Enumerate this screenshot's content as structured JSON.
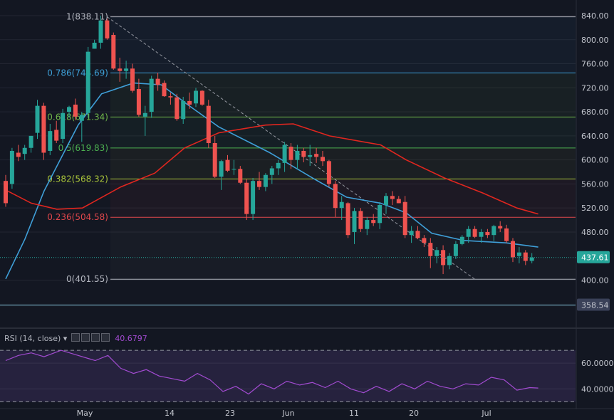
{
  "chart_data": [
    {
      "type": "candlestick",
      "title": "",
      "xlabel": "",
      "ylabel": "",
      "ylim": [
        335,
        845
      ],
      "price_ticks": [
        "840.00",
        "800.00",
        "760.00",
        "720.00",
        "680.00",
        "640.00",
        "600.00",
        "560.00",
        "520.00",
        "480.00",
        "400.00"
      ],
      "date_labels": [
        "May",
        "14",
        "23",
        "Jun",
        "11",
        "20",
        "Jul"
      ],
      "last_price": "437.61",
      "level_marker": "358.54",
      "grid": true,
      "fibonacci": [
        {
          "label": "1(838.11)",
          "value": 838.11,
          "color": "#b2b5be"
        },
        {
          "label": "0.786(744.69)",
          "value": 744.69,
          "color": "#3ea0d8"
        },
        {
          "label": "0.618(671.34)",
          "value": 671.34,
          "color": "#6fb54a"
        },
        {
          "label": "0.5(619.83)",
          "value": 619.83,
          "color": "#4caf50"
        },
        {
          "label": "0.382(568.32)",
          "value": 568.32,
          "color": "#a9c43a"
        },
        {
          "label": "0.236(504.58)",
          "value": 504.58,
          "color": "#e0474c"
        },
        {
          "label": "0(401.55)",
          "value": 401.55,
          "color": "#b2b5be"
        }
      ],
      "candles": [
        [
          565,
          575,
          522,
          528
        ],
        [
          560,
          620,
          552,
          615
        ],
        [
          612,
          625,
          598,
          605
        ],
        [
          610,
          625,
          600,
          620
        ],
        [
          620,
          640,
          612,
          640
        ],
        [
          645,
          700,
          635,
          690
        ],
        [
          690,
          695,
          600,
          612
        ],
        [
          615,
          660,
          608,
          648
        ],
        [
          650,
          665,
          628,
          632
        ],
        [
          635,
          685,
          628,
          678
        ],
        [
          680,
          690,
          670,
          688
        ],
        [
          692,
          702,
          666,
          672
        ],
        [
          665,
          680,
          630,
          675
        ],
        [
          678,
          788,
          670,
          780
        ],
        [
          785,
          800,
          785,
          795
        ],
        [
          795,
          840,
          785,
          832
        ],
        [
          832,
          835,
          800,
          802
        ],
        [
          808,
          812,
          750,
          752
        ],
        [
          752,
          770,
          730,
          748
        ],
        [
          748,
          765,
          735,
          752
        ],
        [
          752,
          760,
          712,
          715
        ],
        [
          718,
          735,
          672,
          675
        ],
        [
          672,
          690,
          640,
          678
        ],
        [
          680,
          740,
          670,
          735
        ],
        [
          735,
          745,
          715,
          725
        ],
        [
          728,
          732,
          705,
          706
        ],
        [
          706,
          712,
          692,
          704
        ],
        [
          704,
          710,
          665,
          668
        ],
        [
          668,
          705,
          660,
          698
        ],
        [
          698,
          712,
          685,
          692
        ],
        [
          694,
          720,
          688,
          715
        ],
        [
          715,
          716,
          690,
          692
        ],
        [
          690,
          700,
          620,
          628
        ],
        [
          628,
          640,
          570,
          572
        ],
        [
          572,
          600,
          550,
          598
        ],
        [
          600,
          608,
          580,
          582
        ],
        [
          585,
          600,
          575,
          585
        ],
        [
          585,
          590,
          560,
          562
        ],
        [
          562,
          568,
          500,
          510
        ],
        [
          510,
          570,
          500,
          565
        ],
        [
          565,
          580,
          550,
          555
        ],
        [
          555,
          578,
          548,
          575
        ],
        [
          575,
          590,
          560,
          586
        ],
        [
          586,
          600,
          575,
          595
        ],
        [
          595,
          630,
          580,
          625
        ],
        [
          622,
          628,
          585,
          600
        ],
        [
          600,
          625,
          585,
          615
        ],
        [
          615,
          620,
          596,
          605
        ],
        [
          605,
          625,
          590,
          608
        ],
        [
          610,
          620,
          595,
          605
        ],
        [
          605,
          615,
          590,
          598
        ],
        [
          598,
          600,
          555,
          560
        ],
        [
          560,
          565,
          505,
          520
        ],
        [
          520,
          540,
          500,
          530
        ],
        [
          528,
          530,
          470,
          475
        ],
        [
          480,
          520,
          460,
          515
        ],
        [
          515,
          520,
          480,
          485
        ],
        [
          485,
          505,
          475,
          500
        ],
        [
          500,
          510,
          490,
          495
        ],
        [
          495,
          530,
          485,
          525
        ],
        [
          525,
          545,
          510,
          540
        ],
        [
          540,
          548,
          525,
          535
        ],
        [
          535,
          540,
          528,
          528
        ],
        [
          530,
          540,
          470,
          475
        ],
        [
          475,
          490,
          462,
          482
        ],
        [
          482,
          490,
          468,
          470
        ],
        [
          470,
          475,
          455,
          462
        ],
        [
          462,
          470,
          420,
          440
        ],
        [
          440,
          455,
          428,
          450
        ],
        [
          450,
          458,
          410,
          425
        ],
        [
          425,
          445,
          418,
          440
        ],
        [
          440,
          465,
          435,
          460
        ],
        [
          460,
          475,
          458,
          472
        ],
        [
          472,
          490,
          462,
          485
        ],
        [
          485,
          490,
          470,
          472
        ],
        [
          472,
          485,
          462,
          480
        ],
        [
          480,
          485,
          470,
          475
        ],
        [
          475,
          492,
          465,
          490
        ],
        [
          490,
          498,
          480,
          486
        ],
        [
          486,
          492,
          462,
          465
        ],
        [
          465,
          470,
          430,
          438
        ],
        [
          440,
          455,
          428,
          446
        ],
        [
          446,
          450,
          425,
          432
        ],
        [
          432,
          445,
          428,
          437.61
        ]
      ],
      "sma20": [
        [
          0,
          402
        ],
        [
          9,
          468
        ],
        [
          18,
          548
        ],
        [
          27,
          610
        ],
        [
          34,
          658
        ],
        [
          45,
          710
        ],
        [
          60,
          728
        ],
        [
          73,
          725
        ],
        [
          85,
          693
        ],
        [
          100,
          655
        ],
        [
          124,
          612
        ],
        [
          145,
          568
        ],
        [
          160,
          538
        ],
        [
          176,
          528
        ],
        [
          188,
          512
        ],
        [
          200,
          478
        ],
        [
          215,
          466
        ],
        [
          235,
          462
        ],
        [
          250,
          455
        ]
      ],
      "sma50": [
        [
          0,
          550
        ],
        [
          12,
          528
        ],
        [
          24,
          518
        ],
        [
          36,
          520
        ],
        [
          54,
          555
        ],
        [
          70,
          578
        ],
        [
          84,
          620
        ],
        [
          100,
          645
        ],
        [
          122,
          658
        ],
        [
          135,
          660
        ],
        [
          152,
          640
        ],
        [
          176,
          625
        ],
        [
          188,
          600
        ],
        [
          206,
          570
        ],
        [
          224,
          545
        ],
        [
          240,
          520
        ],
        [
          250,
          510
        ]
      ]
    },
    {
      "type": "line",
      "title": "RSI (14, close)",
      "indicator_label": "RSI (14, close)",
      "current_value": "40.6797",
      "ylim": [
        28,
        80
      ],
      "y_ticks": [
        "60.0000",
        "40.0000"
      ],
      "bands": [
        70,
        30
      ],
      "values": [
        [
          0,
          62
        ],
        [
          6,
          66
        ],
        [
          12,
          68
        ],
        [
          18,
          65
        ],
        [
          26,
          70
        ],
        [
          34,
          66
        ],
        [
          42,
          62
        ],
        [
          48,
          66
        ],
        [
          54,
          56
        ],
        [
          60,
          52
        ],
        [
          66,
          55
        ],
        [
          72,
          50
        ],
        [
          78,
          48
        ],
        [
          84,
          46
        ],
        [
          90,
          52
        ],
        [
          96,
          47
        ],
        [
          102,
          38
        ],
        [
          108,
          42
        ],
        [
          114,
          36
        ],
        [
          120,
          44
        ],
        [
          126,
          40
        ],
        [
          132,
          46
        ],
        [
          138,
          43
        ],
        [
          144,
          45
        ],
        [
          150,
          41
        ],
        [
          156,
          46
        ],
        [
          162,
          40
        ],
        [
          168,
          37
        ],
        [
          174,
          42
        ],
        [
          180,
          38
        ],
        [
          186,
          44
        ],
        [
          192,
          40
        ],
        [
          198,
          46
        ],
        [
          204,
          42
        ],
        [
          210,
          40
        ],
        [
          216,
          44
        ],
        [
          222,
          43
        ],
        [
          228,
          49
        ],
        [
          234,
          47
        ],
        [
          240,
          39
        ],
        [
          246,
          41
        ],
        [
          250,
          40.68
        ]
      ]
    }
  ],
  "colors": {
    "background": "#131722",
    "grid": "#232632",
    "up": "#26a69a",
    "down": "#ef5350",
    "sma20": "#3f9fd8",
    "sma50": "#e1261f",
    "rsi": "#a24bd1",
    "last_price_bg": "#26a69a",
    "level_bg": "#3a4158",
    "axis_bg": "#131722"
  }
}
